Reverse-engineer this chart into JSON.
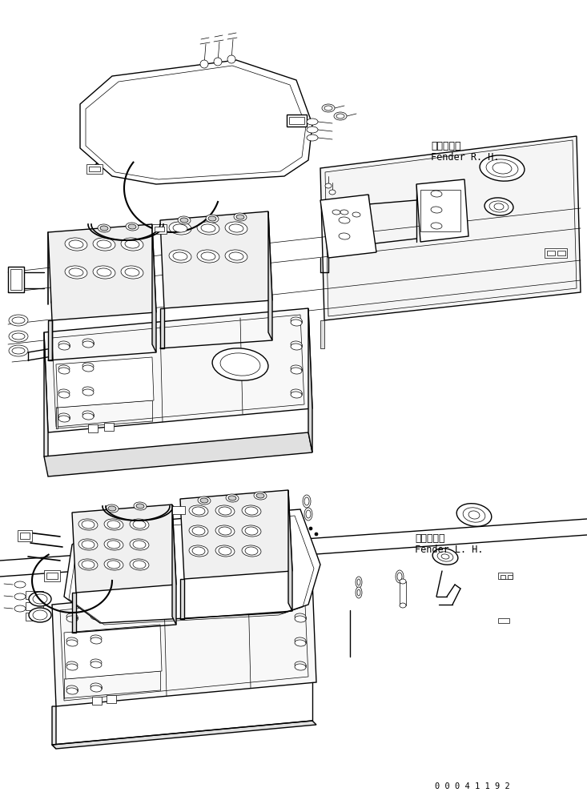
{
  "background_color": "#ffffff",
  "line_color": "#000000",
  "label_rh_jp": "フェンダ右",
  "label_rh_en": "Fender R. H.",
  "label_lh_jp": "フェンダ左",
  "label_lh_en": "Fender L. H.",
  "part_number": "0 0 0 4 1 1 9 2",
  "figsize": [
    7.33,
    9.94
  ],
  "dpi": 100,
  "lw_main": 1.0,
  "lw_thin": 0.5,
  "lw_thick": 1.2
}
